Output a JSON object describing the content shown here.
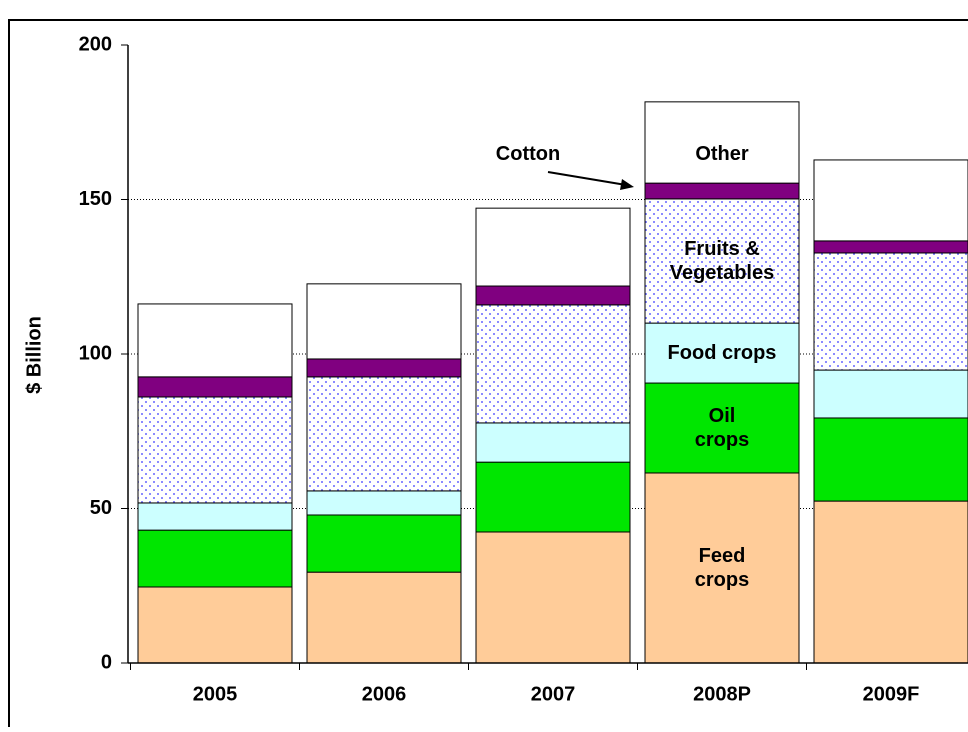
{
  "chart_data": {
    "type": "stacked_bar",
    "y_label": "$ Billion",
    "categories": [
      "2005",
      "2006",
      "2007",
      "2008P",
      "2009F"
    ],
    "series": [
      {
        "name": "Feed crops",
        "color": "#FFCC99",
        "values": [
          24.6,
          29.4,
          42.4,
          61.5,
          52.4
        ]
      },
      {
        "name": "Oil crops",
        "color": "#00E600",
        "values": [
          18.4,
          18.5,
          22.6,
          29.1,
          26.9
        ]
      },
      {
        "name": "Food crops",
        "color": "#CCFFFF",
        "values": [
          8.8,
          7.8,
          12.7,
          19.4,
          15.5
        ]
      },
      {
        "name": "Fruits & Vegetables",
        "color": "#6666FF",
        "pattern": "dots",
        "values": [
          34.3,
          36.9,
          38.2,
          40.2,
          37.9
        ]
      },
      {
        "name": "Cotton",
        "color": "#800080",
        "values": [
          6.5,
          5.8,
          6.1,
          5.1,
          3.9
        ]
      },
      {
        "name": "Other",
        "color": "#FFFFFF",
        "values": [
          23.6,
          24.3,
          25.2,
          26.3,
          26.2
        ]
      }
    ],
    "ylim": [
      0,
      200
    ],
    "yticks": [
      0,
      50,
      100,
      150,
      200
    ],
    "grid": true
  }
}
